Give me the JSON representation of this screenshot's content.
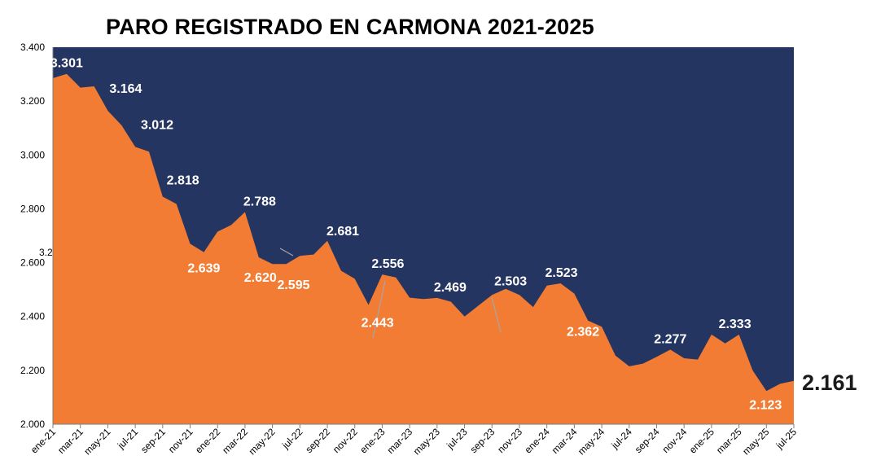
{
  "chart_data": {
    "type": "area",
    "title": "PARO REGISTRADO EN CARMONA 2021-2025",
    "xlabel": "",
    "ylabel": "",
    "ylim": [
      2000,
      3400
    ],
    "y_ticks": [
      "2.000",
      "2.200",
      "2.400",
      "2.600",
      "2.800",
      "3.000",
      "3.200",
      "3.400"
    ],
    "y_tick_values": [
      2000,
      2200,
      2400,
      2600,
      2800,
      3000,
      3200,
      3400
    ],
    "x_tick_labels": [
      "ene-21",
      "mar-21",
      "may-21",
      "jul-21",
      "sep-21",
      "nov-21",
      "ene-22",
      "mar-22",
      "may-22",
      "jul-22",
      "sep-22",
      "nov-22",
      "ene-23",
      "mar-23",
      "may-23",
      "jul-23",
      "sep-23",
      "nov-23",
      "ene-24",
      "mar-24",
      "may-24",
      "jul-24",
      "sep-24",
      "nov-24",
      "ene-25",
      "mar-25",
      "may-25",
      "jul-25"
    ],
    "categories": [
      "ene-21",
      "feb-21",
      "mar-21",
      "abr-21",
      "may-21",
      "jun-21",
      "jul-21",
      "ago-21",
      "sep-21",
      "oct-21",
      "nov-21",
      "dic-21",
      "ene-22",
      "feb-22",
      "mar-22",
      "abr-22",
      "may-22",
      "jun-22",
      "jul-22",
      "ago-22",
      "sep-22",
      "oct-22",
      "nov-22",
      "dic-22",
      "ene-23",
      "feb-23",
      "mar-23",
      "abr-23",
      "may-23",
      "jun-23",
      "jul-23",
      "ago-23",
      "sep-23",
      "oct-23",
      "nov-23",
      "dic-23",
      "ene-24",
      "feb-24",
      "mar-24",
      "abr-24",
      "may-24",
      "jun-24",
      "jul-24",
      "ago-24",
      "sep-24",
      "oct-24",
      "nov-24",
      "dic-24",
      "ene-25",
      "feb-25",
      "mar-25",
      "abr-25",
      "may-25",
      "jun-25",
      "jul-25"
    ],
    "values": [
      3285,
      3301,
      3250,
      3255,
      3164,
      3110,
      3030,
      3012,
      2845,
      2818,
      2670,
      2639,
      2715,
      2740,
      2788,
      2620,
      2595,
      2595,
      2625,
      2630,
      2681,
      2570,
      2540,
      2443,
      2556,
      2545,
      2470,
      2465,
      2469,
      2455,
      2400,
      2440,
      2480,
      2503,
      2480,
      2435,
      2515,
      2523,
      2485,
      2385,
      2362,
      2255,
      2215,
      2225,
      2250,
      2277,
      2245,
      2240,
      2333,
      2300,
      2333,
      2200,
      2123,
      2150,
      2161
    ],
    "data_labels": [
      {
        "index": 1,
        "text": "3.301",
        "dx": 0,
        "dy": -8
      },
      {
        "index": 4,
        "text": "3.164",
        "dx": 22,
        "dy": -22
      },
      {
        "index": 7,
        "text": "3.012",
        "dx": 10,
        "dy": -28
      },
      {
        "index": 9,
        "text": "2.818",
        "dx": 8,
        "dy": -24
      },
      {
        "index": 11,
        "text": "2.639",
        "dx": 0,
        "dy": 25
      },
      {
        "index": 14,
        "text": "2.788",
        "dx": 18,
        "dy": -8
      },
      {
        "index": 15,
        "text": "2.620",
        "dx": 2,
        "dy": 30
      },
      {
        "index": 17,
        "text": "2.595",
        "dx": 9,
        "dy": 31
      },
      {
        "index": 20,
        "text": "2.681",
        "dx": 19,
        "dy": -7
      },
      {
        "index": 23,
        "text": "2.443",
        "dx": 11,
        "dy": 27
      },
      {
        "index": 24,
        "text": "2.556",
        "dx": 7,
        "dy": -8
      },
      {
        "index": 28,
        "text": "2.469",
        "dx": 16,
        "dy": -8
      },
      {
        "index": 33,
        "text": "2.503",
        "dx": 6,
        "dy": -4
      },
      {
        "index": 37,
        "text": "2.523",
        "dx": 1,
        "dy": -8
      },
      {
        "index": 40,
        "text": "2.362",
        "dx": -23,
        "dy": 11
      },
      {
        "index": 45,
        "text": "2.277",
        "dx": 0,
        "dy": -8
      },
      {
        "index": 50,
        "text": "2.333",
        "dx": -5,
        "dy": -8
      },
      {
        "index": 52,
        "text": "2.123",
        "dx": -1,
        "dy": 22
      }
    ],
    "last_label": {
      "index": 54,
      "text": "2.161"
    },
    "stray_label": "3.2",
    "colors": {
      "area": "#f27c34",
      "background": "#253561",
      "label": "#ffffff",
      "last_label": "#1a1a1a"
    },
    "grid": false,
    "legend": "none"
  }
}
